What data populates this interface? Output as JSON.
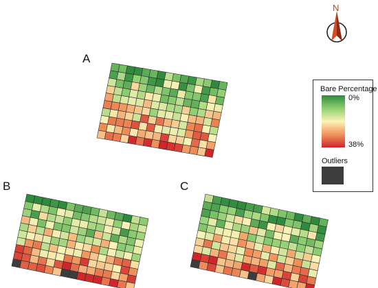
{
  "plots": [
    {
      "label": "A"
    },
    {
      "label": "B"
    },
    {
      "label": "C"
    }
  ],
  "legend": {
    "title": "Bare Percentage",
    "min_label": "0%",
    "max_label": "38%",
    "min_value": 0,
    "max_value": 38,
    "outlier_label": "Outliers",
    "gradient_colors": [
      "#2e8b3e",
      "#8fcf72",
      "#fbf3b8",
      "#f0945c",
      "#d0252a"
    ],
    "outlier_color": "#3d3d3d"
  },
  "north_arrow": {
    "letter": "N",
    "color": "#c8401c"
  }
}
